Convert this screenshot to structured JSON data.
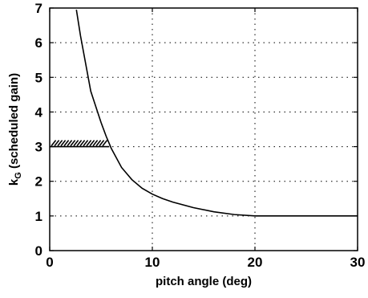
{
  "chart_data": {
    "type": "line",
    "title": "",
    "xlabel": "pitch angle (deg)",
    "ylabel_main": "k",
    "ylabel_sub": "G",
    "ylabel_rest": " (scheduled gain)",
    "xlim": [
      0,
      30
    ],
    "ylim": [
      0,
      7
    ],
    "xticks": [
      0,
      10,
      20,
      30
    ],
    "yticks": [
      0,
      1,
      2,
      3,
      4,
      5,
      6,
      7
    ],
    "grid": true,
    "colors": {
      "line": "#000000",
      "background": "#ffffff"
    },
    "series": [
      {
        "x": [
          2.6,
          3.0,
          3.5,
          4.0,
          4.5,
          5.0,
          5.5,
          6.0,
          7.0,
          8.0,
          9.0,
          10.0,
          11.0,
          12.0,
          14.0,
          16.0,
          18.0,
          20.0,
          25.0,
          30.0
        ],
        "values": [
          6.95,
          6.2,
          5.4,
          4.6,
          4.15,
          3.7,
          3.3,
          2.95,
          2.4,
          2.05,
          1.8,
          1.63,
          1.5,
          1.4,
          1.24,
          1.12,
          1.04,
          1.0,
          1.0,
          1.0
        ]
      }
    ],
    "limit_line": {
      "x": [
        0,
        5.8
      ],
      "y": 3.0,
      "style": "hatched-above"
    }
  }
}
